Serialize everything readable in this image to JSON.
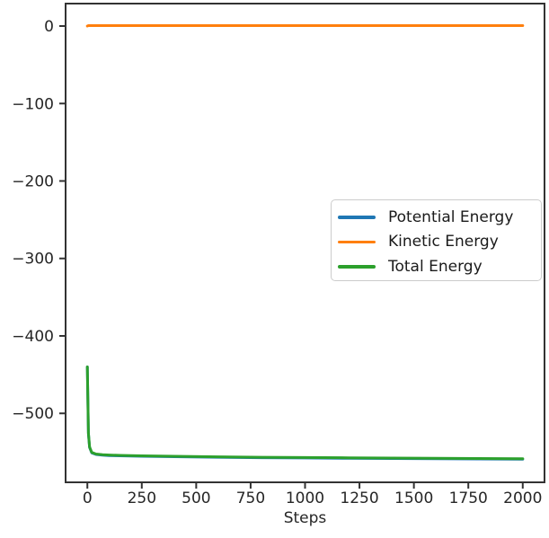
{
  "figure": {
    "background": "#ffffff"
  },
  "axes": {
    "spine_color": "#333333",
    "tick_color": "#333333",
    "label_color": "#262626"
  },
  "chart_data": {
    "type": "line",
    "title": "",
    "xlabel": "Steps",
    "ylabel": "",
    "grid": false,
    "xlim": [
      -100,
      2100
    ],
    "ylim": [
      -589,
      29
    ],
    "x_ticks": {
      "values": [
        0,
        250,
        500,
        750,
        1000,
        1250,
        1500,
        1750,
        2000
      ],
      "labels": [
        "0",
        "250",
        "500",
        "750",
        "1000",
        "1250",
        "1500",
        "1750",
        "2000"
      ]
    },
    "y_ticks": {
      "values": [
        0,
        -100,
        -200,
        -300,
        -400,
        -500
      ],
      "labels": [
        "0",
        "−100",
        "−200",
        "−300",
        "−400",
        "−500"
      ]
    },
    "x": [
      0,
      5,
      10,
      20,
      40,
      70,
      100,
      150,
      250,
      400,
      600,
      800,
      1000,
      1200,
      1400,
      1600,
      1800,
      2000
    ],
    "series": [
      {
        "name": "Potential Energy",
        "color": "#1f77b4",
        "values": [
          -440,
          -526,
          -544,
          -551,
          -553.1,
          -553.9,
          -554.4,
          -554.8,
          -555.4,
          -556.0,
          -556.7,
          -557.2,
          -557.6,
          -558.0,
          -558.3,
          -558.6,
          -558.9,
          -559.2
        ]
      },
      {
        "name": "Kinetic Energy",
        "color": "#ff7f0e",
        "values": [
          0,
          0.6,
          0.6,
          0.6,
          0.6,
          0.6,
          0.6,
          0.6,
          0.6,
          0.6,
          0.6,
          0.6,
          0.6,
          0.6,
          0.6,
          0.6,
          0.6,
          0.6
        ]
      },
      {
        "name": "Total Energy",
        "color": "#2ca02c",
        "values": [
          -440,
          -525.4,
          -543.4,
          -550.4,
          -552.5,
          -553.3,
          -553.8,
          -554.2,
          -554.8,
          -555.4,
          -556.1,
          -556.6,
          -557.0,
          -557.4,
          -557.7,
          -558.0,
          -558.3,
          -558.6
        ]
      }
    ],
    "legend": {
      "position": "center-right",
      "entries": [
        "Potential Energy",
        "Kinetic Energy",
        "Total Energy"
      ]
    }
  }
}
